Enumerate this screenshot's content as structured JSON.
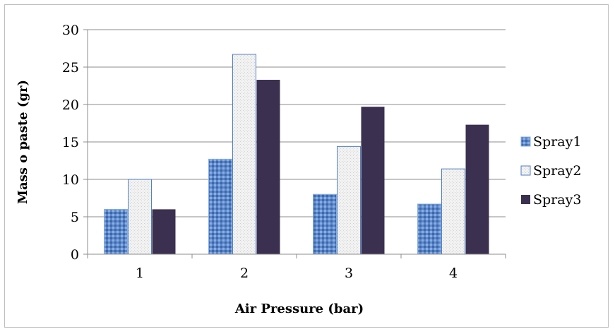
{
  "chart_data": {
    "type": "bar",
    "title": "",
    "xlabel": "Air Pressure (bar)",
    "ylabel": "Mass o paste (gr)",
    "categories": [
      "1",
      "2",
      "3",
      "4"
    ],
    "ylim": [
      0,
      30
    ],
    "yticks": [
      0,
      5,
      10,
      15,
      20,
      25,
      30
    ],
    "grid": true,
    "legend_position": "right",
    "series": [
      {
        "name": "Spray1",
        "values": [
          6.0,
          12.7,
          8.0,
          6.7
        ],
        "color": "#4f7fc6"
      },
      {
        "name": "Spray2",
        "values": [
          10.0,
          26.7,
          14.4,
          11.4
        ],
        "color": "#e8e8e8"
      },
      {
        "name": "Spray3",
        "values": [
          6.0,
          23.3,
          19.7,
          17.3
        ],
        "color": "#3b3050"
      }
    ]
  }
}
